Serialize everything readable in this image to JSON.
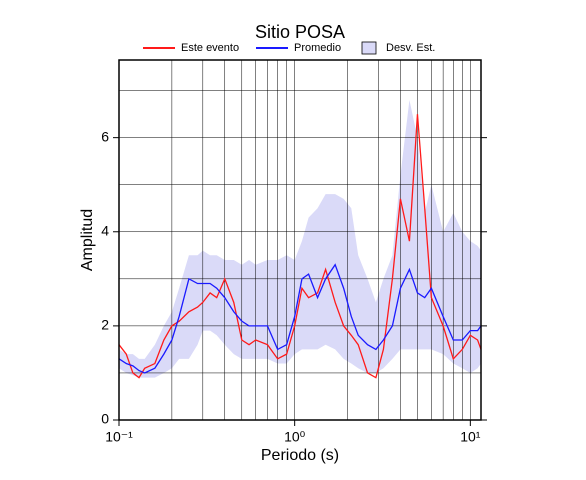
{
  "chart_data": {
    "type": "line",
    "title": "Sitio POSA",
    "x_label": "Periodo (s)",
    "y_label": "Amplitud",
    "xscale": "log",
    "xlim": [
      0.1,
      11.5
    ],
    "ylim": [
      0,
      7.65
    ],
    "xticks": [
      {
        "value": 0.1,
        "label": "10⁻¹"
      },
      {
        "value": 1,
        "label": "10⁰"
      },
      {
        "value": 10,
        "label": "10¹"
      }
    ],
    "xgrid": [
      0.2,
      0.3,
      0.4,
      0.5,
      0.6,
      0.7,
      0.8,
      0.9,
      1,
      2,
      3,
      4,
      5,
      6,
      7,
      8,
      9,
      10
    ],
    "yticks": [
      0,
      2,
      4,
      6
    ],
    "ygrid": [
      1,
      2,
      3,
      4,
      5,
      6,
      7
    ],
    "x": [
      0.1,
      0.11,
      0.12,
      0.13,
      0.14,
      0.16,
      0.18,
      0.2,
      0.22,
      0.25,
      0.28,
      0.3,
      0.33,
      0.36,
      0.4,
      0.45,
      0.5,
      0.55,
      0.6,
      0.7,
      0.8,
      0.9,
      1.0,
      1.1,
      1.2,
      1.35,
      1.5,
      1.7,
      1.9,
      2.1,
      2.3,
      2.6,
      2.9,
      3.2,
      3.6,
      4.0,
      4.5,
      5.0,
      5.5,
      6,
      7,
      8,
      9,
      10,
      11,
      11.5
    ],
    "band": {
      "name": "Desv. Est.",
      "color": "#dadaf8",
      "upper": [
        1.5,
        1.4,
        1.4,
        1.3,
        1.3,
        1.6,
        2.0,
        2.3,
        2.8,
        3.5,
        3.5,
        3.6,
        3.5,
        3.5,
        3.4,
        3.4,
        3.3,
        3.4,
        3.3,
        3.4,
        3.4,
        3.5,
        3.4,
        3.8,
        4.3,
        4.5,
        4.8,
        4.8,
        4.7,
        4.5,
        3.5,
        3.0,
        2.5,
        3.0,
        3.5,
        5.2,
        6.8,
        6.0,
        4.4,
        5.0,
        4.0,
        4.4,
        4.0,
        3.8,
        3.7,
        3.6
      ],
      "lower": [
        1.1,
        1.0,
        0.95,
        0.9,
        0.9,
        0.9,
        1.0,
        1.1,
        1.3,
        1.3,
        1.6,
        1.9,
        1.9,
        1.8,
        1.6,
        1.4,
        1.3,
        1.3,
        1.3,
        1.3,
        1.2,
        1.2,
        1.4,
        1.5,
        1.5,
        1.5,
        1.6,
        1.5,
        1.3,
        1.2,
        1.1,
        1.0,
        1.0,
        1.1,
        1.3,
        1.5,
        1.5,
        1.5,
        1.5,
        1.5,
        1.4,
        1.2,
        1.1,
        1.0,
        1.1,
        1.2
      ]
    },
    "series": [
      {
        "name": "Este evento",
        "color": "#ff1a1a",
        "values": [
          1.6,
          1.4,
          1.0,
          0.9,
          1.1,
          1.2,
          1.7,
          2.0,
          2.1,
          2.3,
          2.4,
          2.5,
          2.7,
          2.6,
          3.0,
          2.5,
          1.7,
          1.6,
          1.7,
          1.6,
          1.3,
          1.4,
          2.0,
          2.8,
          2.6,
          2.7,
          3.2,
          2.5,
          2.0,
          1.8,
          1.6,
          1.0,
          0.9,
          1.5,
          3.0,
          4.7,
          3.8,
          6.5,
          4.5,
          2.6,
          2.0,
          1.3,
          1.5,
          1.8,
          1.7,
          1.5
        ]
      },
      {
        "name": "Promedio",
        "color": "#1a1aff",
        "values": [
          1.3,
          1.2,
          1.15,
          1.05,
          1.0,
          1.1,
          1.4,
          1.7,
          2.2,
          3.0,
          2.9,
          2.9,
          2.9,
          2.8,
          2.6,
          2.3,
          2.1,
          2.0,
          2.0,
          2.0,
          1.5,
          1.6,
          2.2,
          3.0,
          3.1,
          2.6,
          3.0,
          3.3,
          2.8,
          2.2,
          1.8,
          1.6,
          1.5,
          1.7,
          2.0,
          2.8,
          3.2,
          2.7,
          2.6,
          2.8,
          2.2,
          1.7,
          1.7,
          1.9,
          1.9,
          2.0
        ]
      }
    ]
  }
}
